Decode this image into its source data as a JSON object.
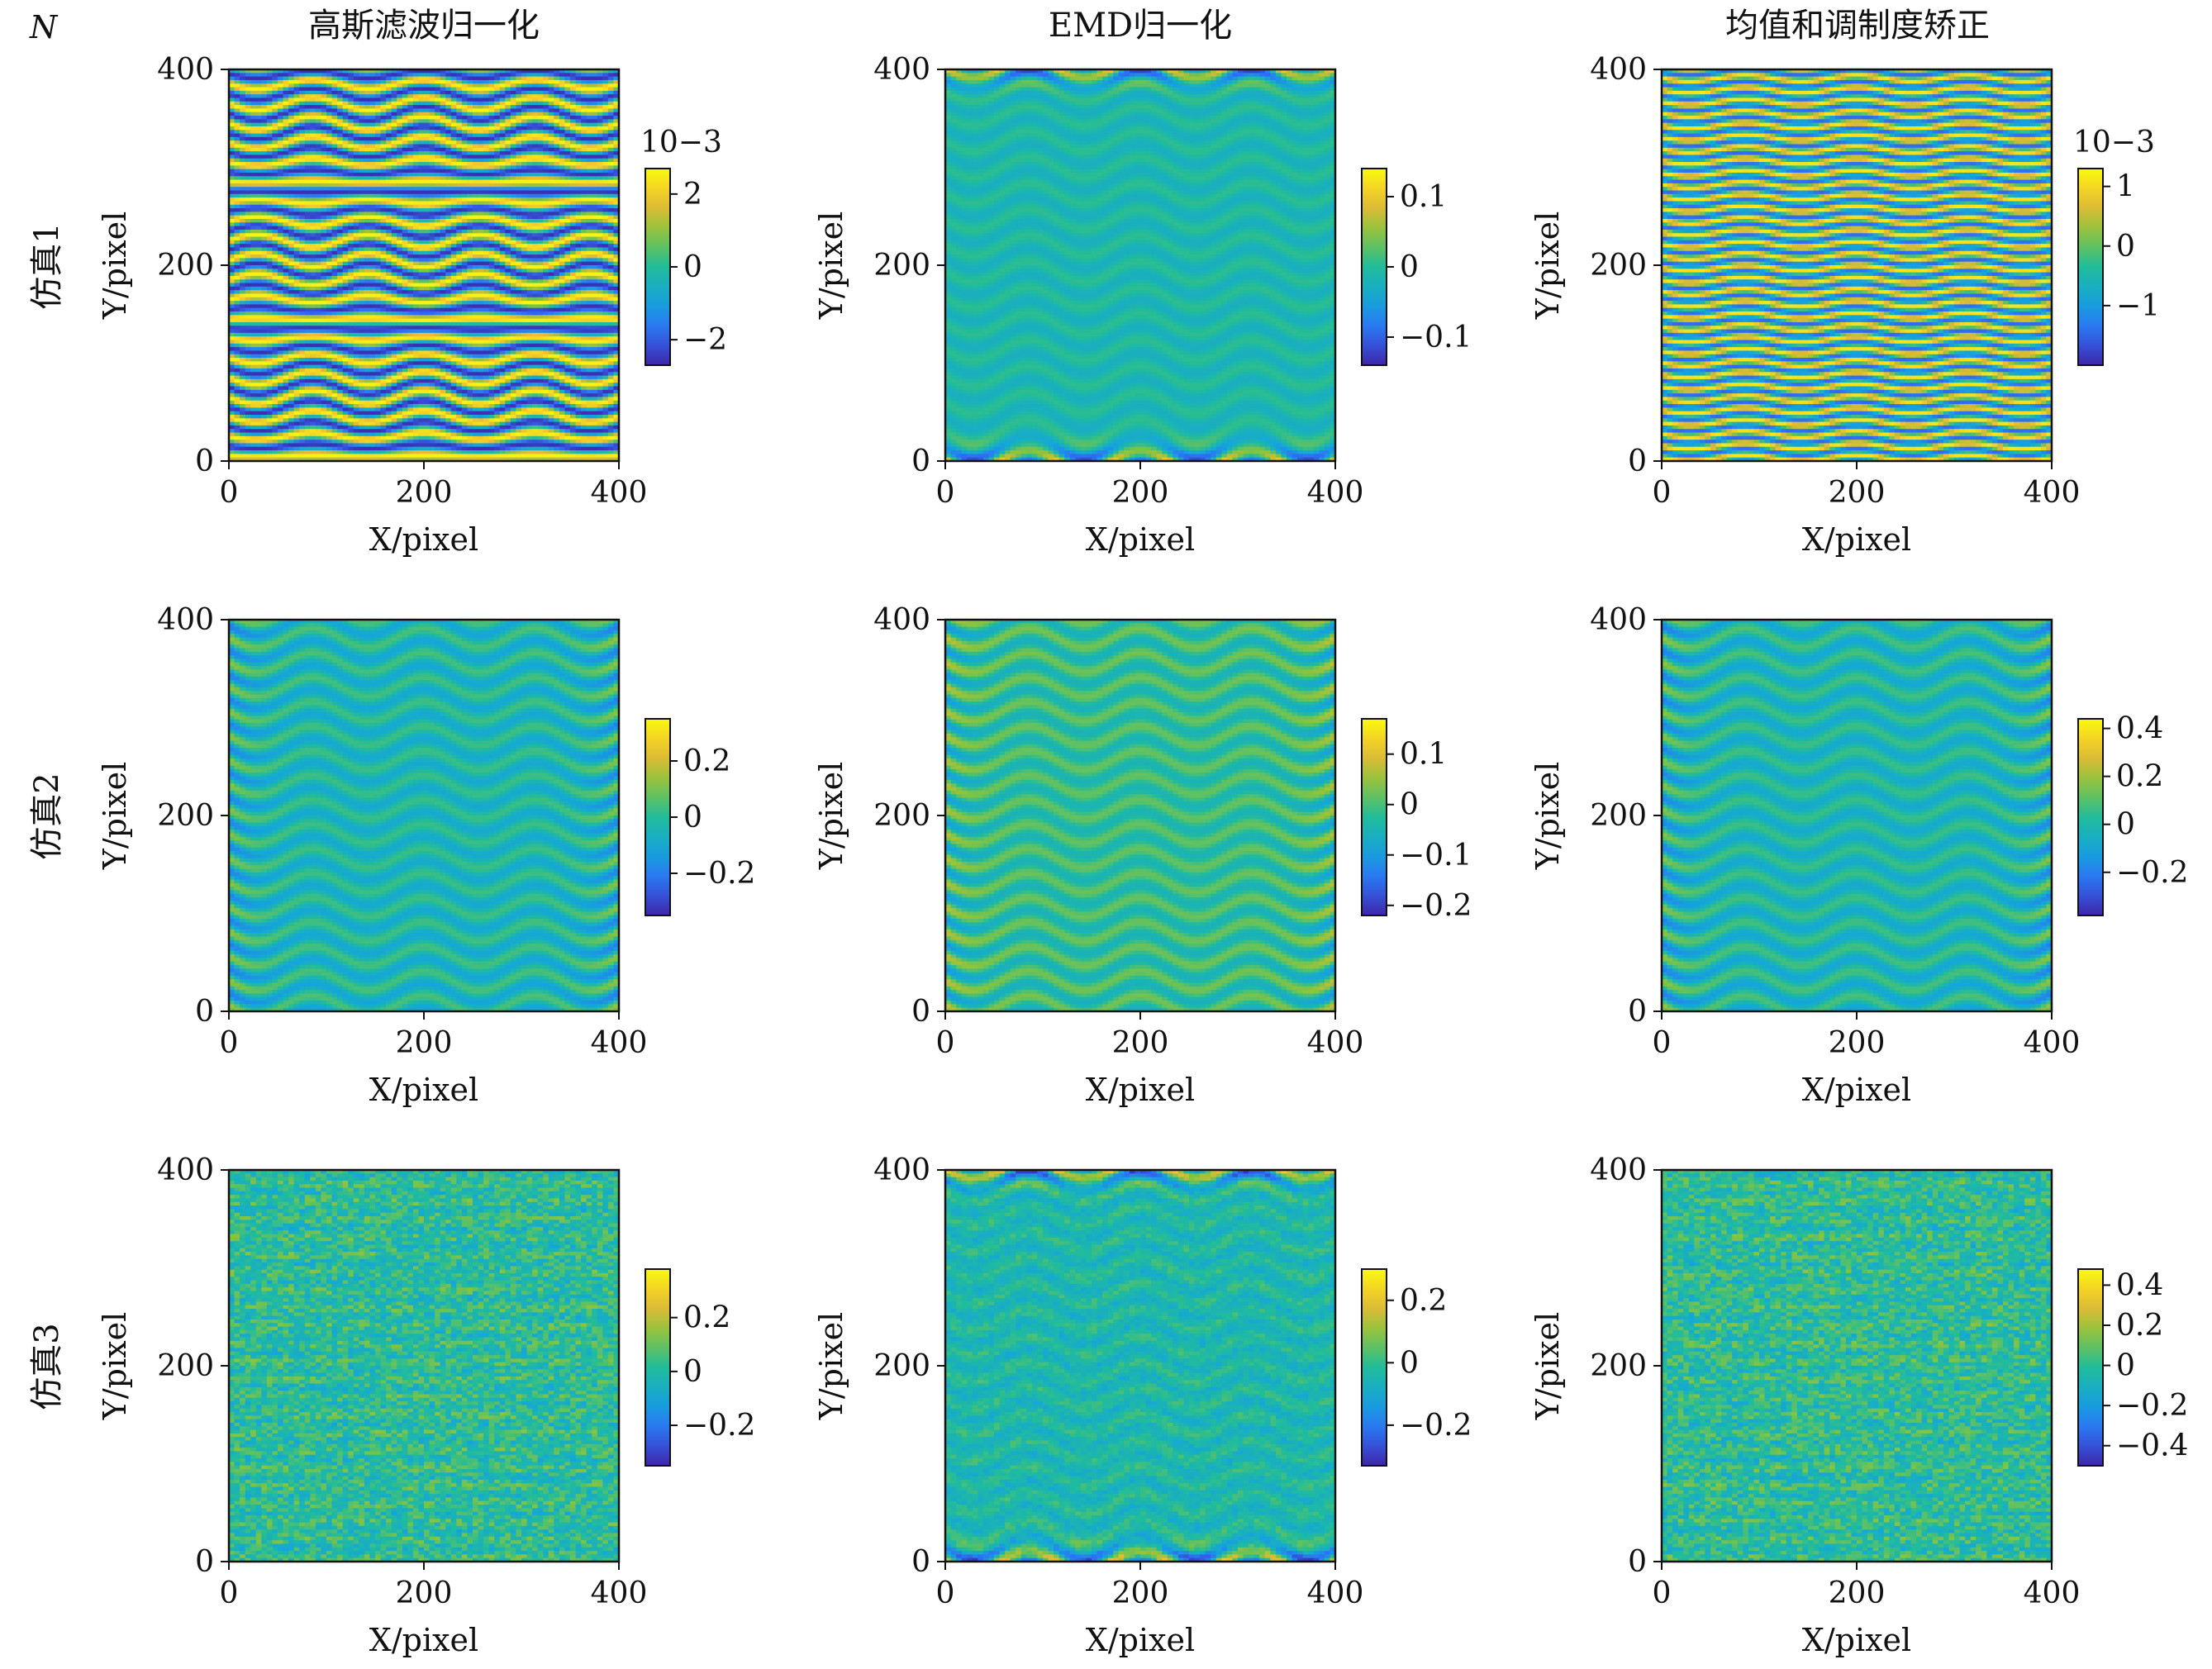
{
  "corner_label": "N",
  "x_axis": {
    "label": "X/pixel",
    "ticks": [
      "0",
      "200",
      "400"
    ],
    "range": [
      0,
      400
    ]
  },
  "y_axis": {
    "label": "Y/pixel",
    "ticks": [
      "0",
      "200",
      "400"
    ],
    "range": [
      0,
      400
    ]
  },
  "columns": [
    {
      "title": "高斯滤波归一化"
    },
    {
      "title": "EMD归一化"
    },
    {
      "title": "均值和调制度矫正"
    }
  ],
  "rows": [
    {
      "label": "仿真1"
    },
    {
      "label": "仿真2"
    },
    {
      "label": "仿真3"
    }
  ],
  "colormap": [
    "#3e26a8",
    "#2f6ef7",
    "#14a6d9",
    "#21bc9b",
    "#86c440",
    "#f0ba32",
    "#f9fb0e"
  ],
  "chart_data": [
    {
      "type": "heatmap",
      "row": 0,
      "col": 0,
      "pattern": "strong",
      "seed": 11,
      "cbar": {
        "exp": "10−3",
        "lim": [
          -2.7,
          2.7
        ],
        "ticks": [
          {
            "v": 2,
            "t": "2"
          },
          {
            "v": 0,
            "t": "0"
          },
          {
            "v": -2,
            "t": "−2"
          }
        ]
      }
    },
    {
      "type": "heatmap",
      "row": 0,
      "col": 1,
      "pattern": "edge",
      "seed": 12,
      "cbar": {
        "exp": "",
        "lim": [
          -0.14,
          0.14
        ],
        "ticks": [
          {
            "v": 0.1,
            "t": "0.1"
          },
          {
            "v": 0,
            "t": "0"
          },
          {
            "v": -0.1,
            "t": "−0.1"
          }
        ]
      }
    },
    {
      "type": "heatmap",
      "row": 0,
      "col": 2,
      "pattern": "dense",
      "seed": 13,
      "cbar": {
        "exp": "10−3",
        "lim": [
          -2.0,
          1.3
        ],
        "ticks": [
          {
            "v": 1,
            "t": "1"
          },
          {
            "v": 0,
            "t": "0"
          },
          {
            "v": -1,
            "t": "−1"
          }
        ]
      }
    },
    {
      "type": "heatmap",
      "row": 1,
      "col": 0,
      "pattern": "mid",
      "seed": 21,
      "cbar": {
        "exp": "",
        "lim": [
          -0.35,
          0.35
        ],
        "ticks": [
          {
            "v": 0.2,
            "t": "0.2"
          },
          {
            "v": 0,
            "t": "0"
          },
          {
            "v": -0.2,
            "t": "−0.2"
          }
        ]
      }
    },
    {
      "type": "heatmap",
      "row": 1,
      "col": 1,
      "pattern": "mid2",
      "seed": 22,
      "cbar": {
        "exp": "",
        "lim": [
          -0.22,
          0.17
        ],
        "ticks": [
          {
            "v": 0.1,
            "t": "0.1"
          },
          {
            "v": 0,
            "t": "0"
          },
          {
            "v": -0.1,
            "t": "−0.1"
          },
          {
            "v": -0.2,
            "t": "−0.2"
          }
        ]
      }
    },
    {
      "type": "heatmap",
      "row": 1,
      "col": 2,
      "pattern": "mid",
      "seed": 23,
      "cbar": {
        "exp": "",
        "lim": [
          -0.38,
          0.44
        ],
        "ticks": [
          {
            "v": 0.4,
            "t": "0.4"
          },
          {
            "v": 0.2,
            "t": "0.2"
          },
          {
            "v": 0,
            "t": "0"
          },
          {
            "v": -0.2,
            "t": "−0.2"
          }
        ]
      }
    },
    {
      "type": "heatmap",
      "row": 2,
      "col": 0,
      "pattern": "noise",
      "seed": 31,
      "cbar": {
        "exp": "",
        "lim": [
          -0.35,
          0.38
        ],
        "ticks": [
          {
            "v": 0.2,
            "t": "0.2"
          },
          {
            "v": 0,
            "t": "0"
          },
          {
            "v": -0.2,
            "t": "−0.2"
          }
        ]
      }
    },
    {
      "type": "heatmap",
      "row": 2,
      "col": 1,
      "pattern": "edgenoise",
      "seed": 32,
      "cbar": {
        "exp": "",
        "lim": [
          -0.33,
          0.3
        ],
        "ticks": [
          {
            "v": 0.2,
            "t": "0.2"
          },
          {
            "v": 0,
            "t": "0"
          },
          {
            "v": -0.2,
            "t": "−0.2"
          }
        ]
      }
    },
    {
      "type": "heatmap",
      "row": 2,
      "col": 2,
      "pattern": "noise",
      "seed": 33,
      "cbar": {
        "exp": "",
        "lim": [
          -0.5,
          0.48
        ],
        "ticks": [
          {
            "v": 0.4,
            "t": "0.4"
          },
          {
            "v": 0.2,
            "t": "0.2"
          },
          {
            "v": 0,
            "t": "0"
          },
          {
            "v": -0.2,
            "t": "−0.2"
          },
          {
            "v": -0.4,
            "t": "−0.4"
          }
        ]
      }
    }
  ]
}
